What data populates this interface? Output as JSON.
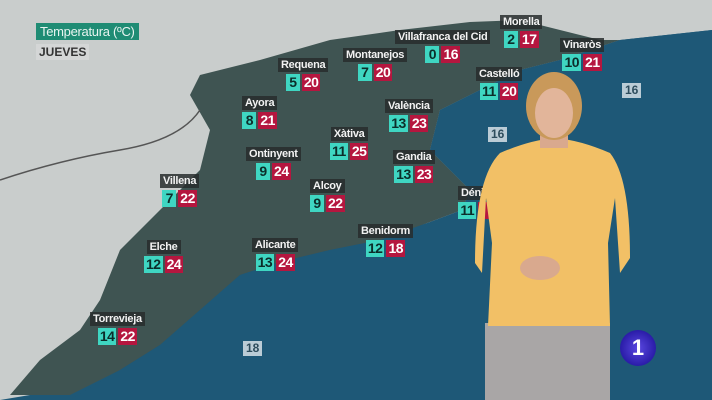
{
  "header": {
    "title": "Temperatura (ºC)",
    "day": "JUEVES"
  },
  "colors": {
    "min_bg": "#3fd6c2",
    "max_bg": "#b5163f",
    "sea": "#1e5877",
    "land": "#3f5452"
  },
  "cities": [
    {
      "name": "Morella",
      "min": "2",
      "max": "17"
    },
    {
      "name": "Villafranca del Cid",
      "min": "0",
      "max": "16"
    },
    {
      "name": "Vinaròs",
      "min": "10",
      "max": "21"
    },
    {
      "name": "Requena",
      "min": "5",
      "max": "20"
    },
    {
      "name": "Montanejos",
      "min": "7",
      "max": "20"
    },
    {
      "name": "Castelló",
      "min": "11",
      "max": "20"
    },
    {
      "name": "Ayora",
      "min": "8",
      "max": "21"
    },
    {
      "name": "València",
      "min": "13",
      "max": "23"
    },
    {
      "name": "Xàtiva",
      "min": "11",
      "max": "25"
    },
    {
      "name": "Ontinyent",
      "min": "9",
      "max": "24"
    },
    {
      "name": "Gandia",
      "min": "13",
      "max": "23"
    },
    {
      "name": "Villena",
      "min": "7",
      "max": "22"
    },
    {
      "name": "Alcoy",
      "min": "9",
      "max": "22"
    },
    {
      "name": "Dénia",
      "min": "11"
    },
    {
      "name": "Benidorm",
      "min": "12",
      "max": "18"
    },
    {
      "name": "Elche",
      "min": "12",
      "max": "24"
    },
    {
      "name": "Alicante",
      "min": "13",
      "max": "24"
    },
    {
      "name": "Torrevieja",
      "min": "14",
      "max": "22"
    }
  ],
  "sea_temps": [
    "16",
    "16",
    "18"
  ],
  "channel_logo": "1"
}
